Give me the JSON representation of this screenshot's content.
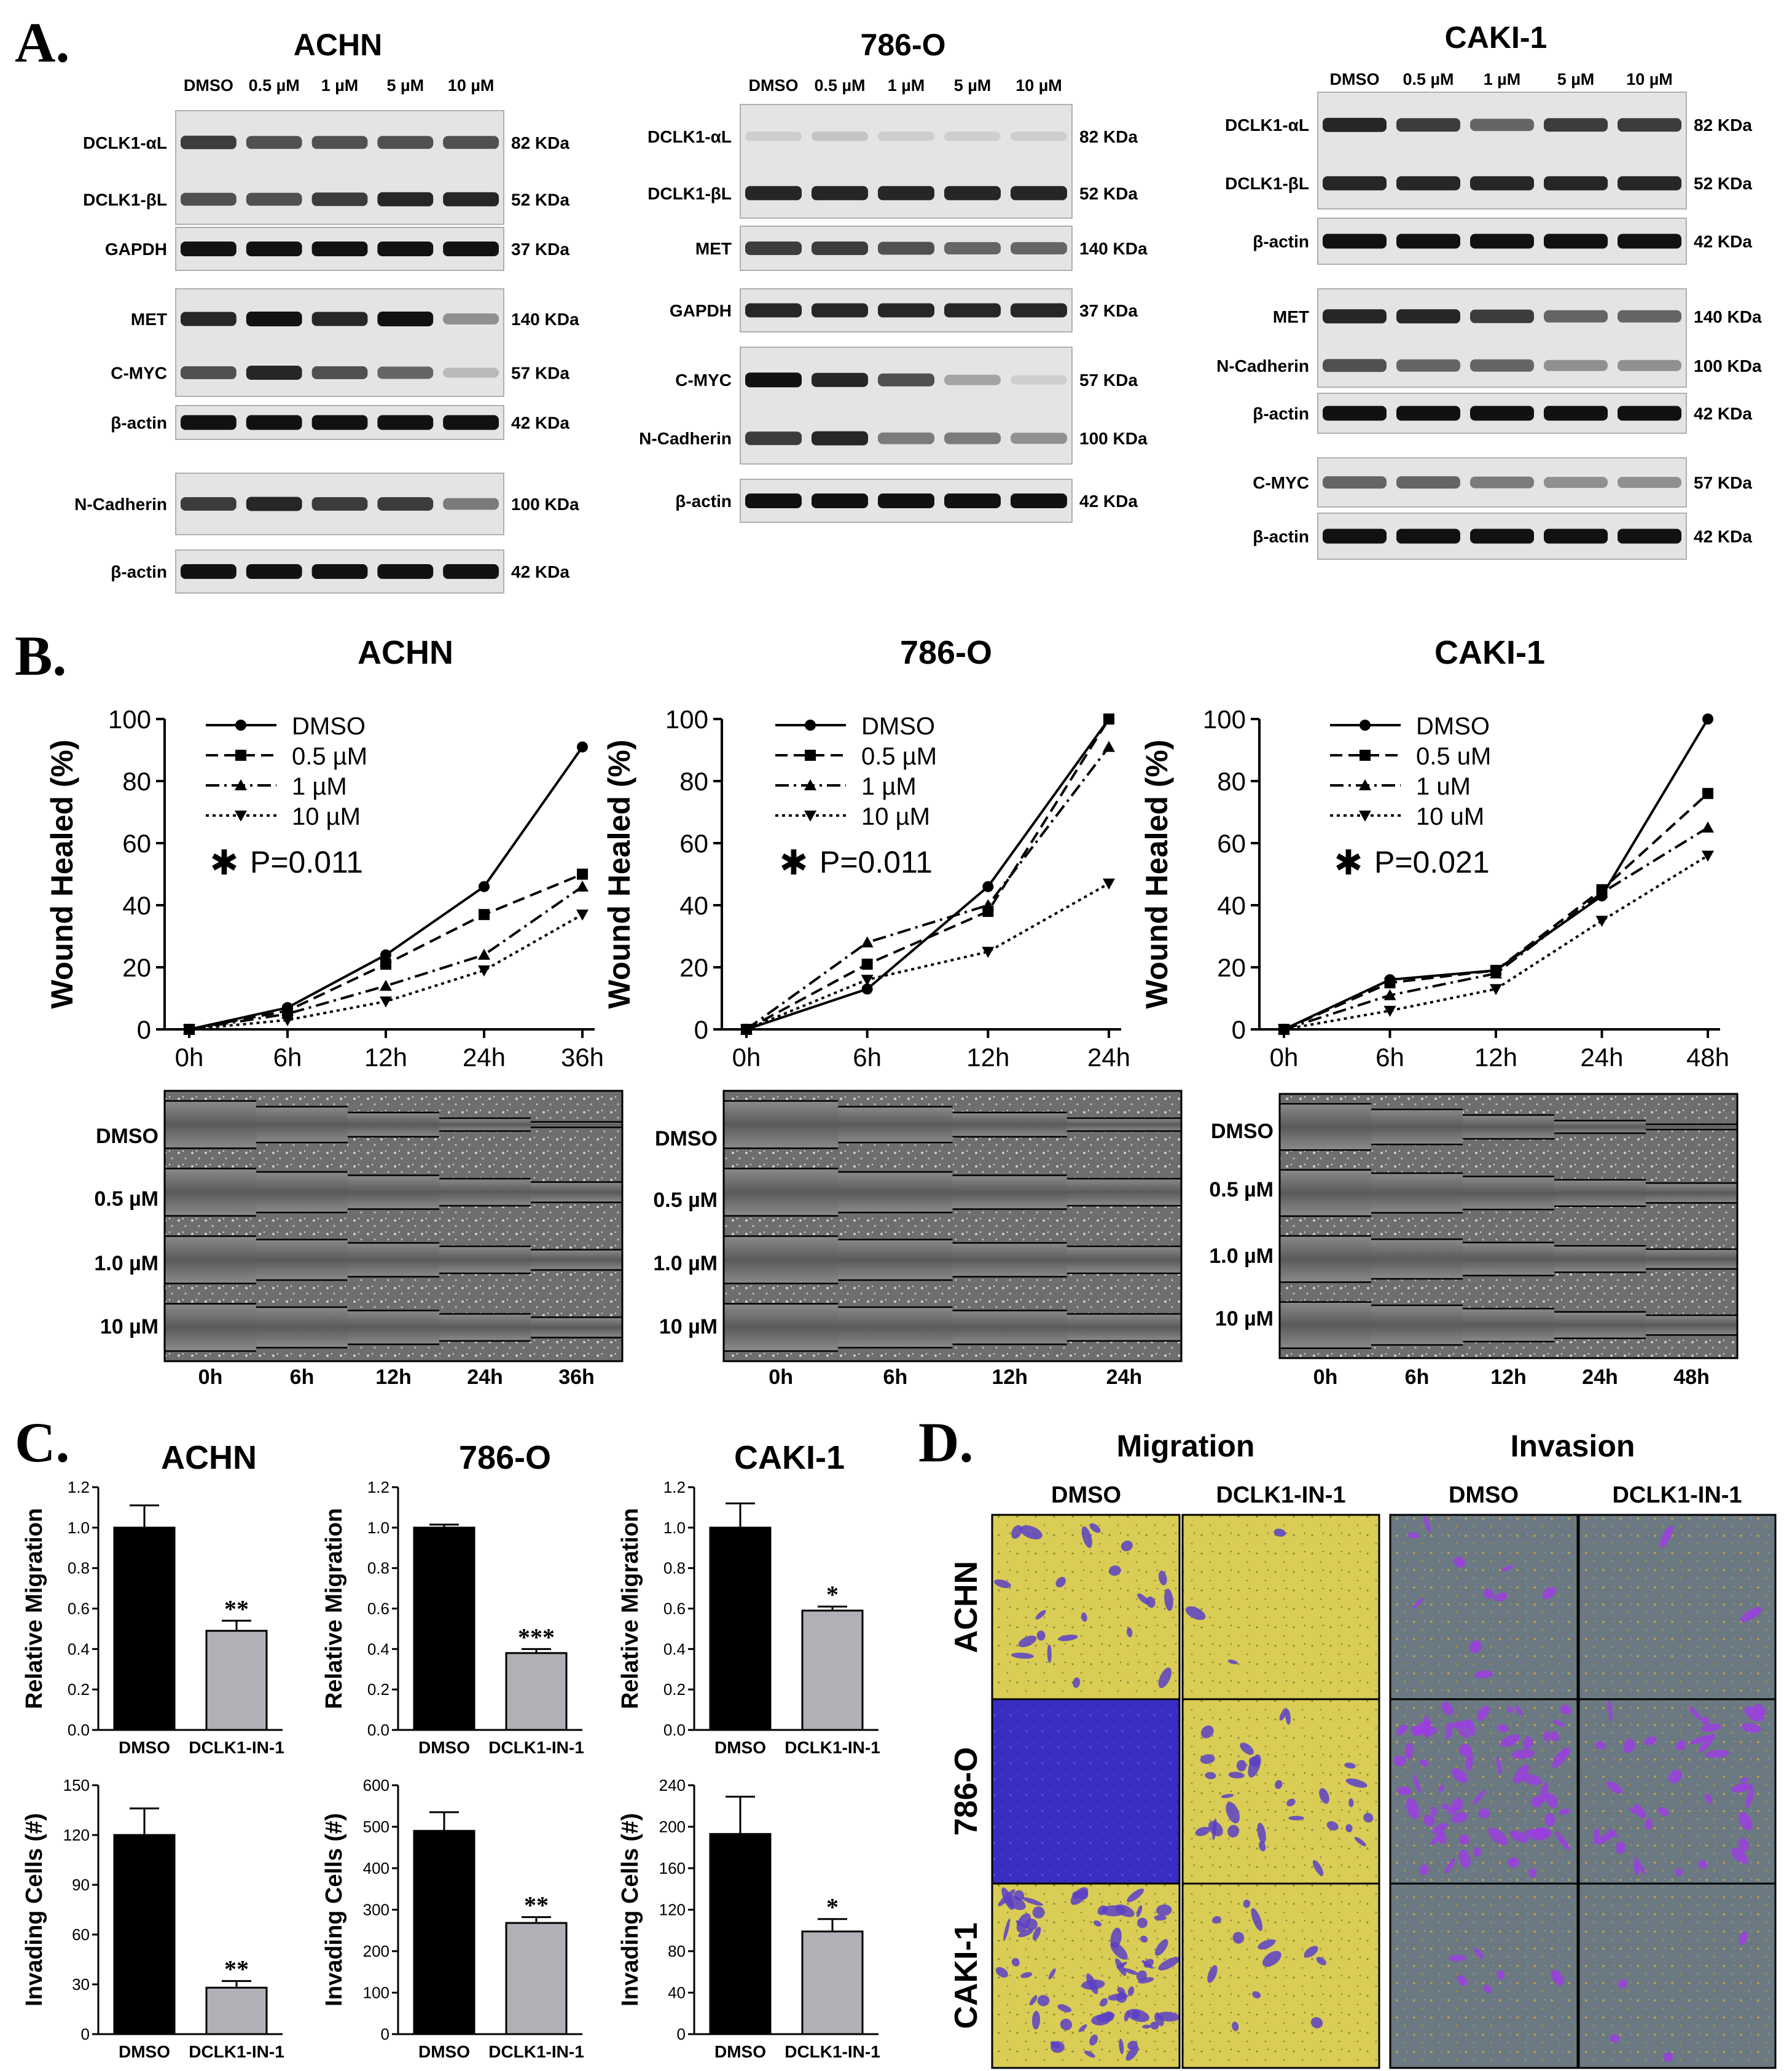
{
  "panel_labels": {
    "a": "A.",
    "b": "B.",
    "c": "C.",
    "d": "D."
  },
  "colors": {
    "band": "#111111",
    "blot_bg": "#e4e4e4",
    "bar_dmso": "#000000",
    "bar_treat": "#b0b0b7",
    "mig_yellow": "#d8cc52",
    "mig_blue": "#3b2fc4",
    "inv_gray": "#6c7a80",
    "purple": "#8a3bd6"
  },
  "blots": [
    {
      "title": "ACHN",
      "conc": [
        "DMSO",
        "0.5 µM",
        "1 µM",
        "5 µM",
        "10 µM"
      ],
      "strips": [
        {
          "left": [
            "DCLK1-αL",
            "DCLK1-βL"
          ],
          "right": [
            "82 KDa",
            "52 KDa"
          ],
          "intensity": [
            [
              0.8,
              0.7,
              0.7,
              0.7,
              0.7
            ],
            [
              0.7,
              0.7,
              0.8,
              0.9,
              0.9
            ]
          ]
        },
        {
          "left": [
            "GAPDH"
          ],
          "right": [
            "37 KDa"
          ],
          "intensity": [
            [
              1,
              1,
              1,
              1,
              1
            ]
          ]
        },
        {
          "left": [
            "MET",
            "C-MYC"
          ],
          "right": [
            "140 KDa",
            "57 KDa"
          ],
          "intensity": [
            [
              0.9,
              1,
              0.9,
              1,
              0.4
            ],
            [
              0.7,
              0.9,
              0.7,
              0.6,
              0.2
            ]
          ]
        },
        {
          "left": [
            "β-actin"
          ],
          "right": [
            "42 KDa"
          ],
          "intensity": [
            [
              1,
              1,
              1,
              1,
              1
            ]
          ]
        },
        {
          "left": [
            "N-Cadherin"
          ],
          "right": [
            "100 KDa"
          ],
          "intensity": [
            [
              0.8,
              0.9,
              0.8,
              0.8,
              0.5
            ]
          ]
        },
        {
          "left": [
            "β-actin"
          ],
          "right": [
            "42 KDa"
          ],
          "intensity": [
            [
              1,
              1,
              1,
              1,
              1
            ]
          ]
        }
      ]
    },
    {
      "title": "786-O",
      "conc": [
        "DMSO",
        "0.5 µM",
        "1 µM",
        "5 µM",
        "10 µM"
      ],
      "strips": [
        {
          "left": [
            "DCLK1-αL",
            "DCLK1-βL"
          ],
          "right": [
            "82 KDa",
            "52 KDa"
          ],
          "intensity": [
            [
              0.1,
              0.15,
              0.1,
              0.1,
              0.1
            ],
            [
              0.9,
              0.9,
              0.9,
              0.9,
              0.9
            ]
          ]
        },
        {
          "left": [
            "MET"
          ],
          "right": [
            "140 KDa"
          ],
          "intensity": [
            [
              0.8,
              0.8,
              0.7,
              0.6,
              0.6
            ]
          ]
        },
        {
          "left": [
            "GAPDH"
          ],
          "right": [
            "37 KDa"
          ],
          "intensity": [
            [
              0.9,
              0.9,
              0.9,
              0.9,
              0.9
            ]
          ]
        },
        {
          "left": [
            "C-MYC",
            "N-Cadherin"
          ],
          "right": [
            "57 KDa",
            "100 KDa"
          ],
          "intensity": [
            [
              1,
              0.9,
              0.7,
              0.3,
              0.1
            ],
            [
              0.8,
              0.9,
              0.5,
              0.5,
              0.4
            ]
          ]
        },
        {
          "left": [
            "β-actin"
          ],
          "right": [
            "42 KDa"
          ],
          "intensity": [
            [
              1,
              1,
              1,
              1,
              1
            ]
          ]
        }
      ]
    },
    {
      "title": "CAKI-1",
      "conc": [
        "DMSO",
        "0.5 µM",
        "1 µM",
        "5 µM",
        "10 µM"
      ],
      "strips": [
        {
          "left": [
            "DCLK1-αL",
            "DCLK1-βL"
          ],
          "right": [
            "82 KDa",
            "52 KDa"
          ],
          "intensity": [
            [
              0.9,
              0.8,
              0.6,
              0.8,
              0.8
            ],
            [
              0.9,
              0.9,
              0.9,
              0.9,
              0.9
            ]
          ]
        },
        {
          "left": [
            "β-actin"
          ],
          "right": [
            "42 KDa"
          ],
          "intensity": [
            [
              1,
              1,
              1,
              1,
              1
            ]
          ]
        },
        {
          "left": [
            "MET",
            "N-Cadherin"
          ],
          "right": [
            "140 KDa",
            "100 KDa"
          ],
          "intensity": [
            [
              0.9,
              0.9,
              0.8,
              0.6,
              0.6
            ],
            [
              0.7,
              0.6,
              0.6,
              0.4,
              0.4
            ]
          ]
        },
        {
          "left": [
            "β-actin"
          ],
          "right": [
            "42 KDa"
          ],
          "intensity": [
            [
              1,
              1,
              1,
              1,
              1
            ]
          ]
        },
        {
          "left": [
            "C-MYC"
          ],
          "right": [
            "57 KDa"
          ],
          "intensity": [
            [
              0.6,
              0.6,
              0.5,
              0.4,
              0.4
            ]
          ]
        },
        {
          "left": [
            "β-actin"
          ],
          "right": [
            "42 KDa"
          ],
          "intensity": [
            [
              1,
              1,
              1,
              1,
              1
            ]
          ]
        }
      ]
    }
  ],
  "chart_data": [
    {
      "type": "line",
      "title": "ACHN",
      "ylabel": "Wound Healed (%)",
      "xlabel": "",
      "categories": [
        "0h",
        "6h",
        "12h",
        "24h",
        "36h"
      ],
      "ylim": [
        0,
        100
      ],
      "yticks": [
        0,
        20,
        40,
        60,
        80,
        100
      ],
      "annotation": "P=0.011",
      "star": "✱",
      "series": [
        {
          "name": "DMSO",
          "values": [
            0,
            7,
            24,
            46,
            91
          ]
        },
        {
          "name": "0.5 µM",
          "values": [
            0,
            6,
            21,
            37,
            50
          ]
        },
        {
          "name": "1 µM",
          "values": [
            0,
            5,
            14,
            24,
            46
          ]
        },
        {
          "name": "10 µM",
          "values": [
            0,
            3,
            9,
            19,
            37
          ]
        }
      ]
    },
    {
      "type": "line",
      "title": "786-O",
      "ylabel": "Wound Healed (%)",
      "xlabel": "",
      "categories": [
        "0h",
        "6h",
        "12h",
        "24h"
      ],
      "ylim": [
        0,
        100
      ],
      "yticks": [
        0,
        20,
        40,
        60,
        80,
        100
      ],
      "annotation": "P=0.011",
      "star": "✱",
      "series": [
        {
          "name": "DMSO",
          "values": [
            0,
            13,
            46,
            100
          ]
        },
        {
          "name": "0.5 µM",
          "values": [
            0,
            21,
            38,
            100
          ]
        },
        {
          "name": "1 µM",
          "values": [
            0,
            28,
            40,
            91
          ]
        },
        {
          "name": "10 µM",
          "values": [
            0,
            16,
            25,
            47
          ]
        }
      ]
    },
    {
      "type": "line",
      "title": "CAKI-1",
      "ylabel": "Wound Healed (%)",
      "xlabel": "",
      "categories": [
        "0h",
        "6h",
        "12h",
        "24h",
        "48h"
      ],
      "ylim": [
        0,
        100
      ],
      "yticks": [
        0,
        20,
        40,
        60,
        80,
        100
      ],
      "annotation": "P=0.021",
      "star": "✱",
      "series": [
        {
          "name": "DMSO",
          "values": [
            0,
            16,
            19,
            43,
            100
          ]
        },
        {
          "name": "0.5 uM",
          "values": [
            0,
            15,
            19,
            45,
            76
          ]
        },
        {
          "name": "1 uM",
          "values": [
            0,
            11,
            18,
            44,
            65
          ]
        },
        {
          "name": "10 uM",
          "values": [
            0,
            6,
            13,
            35,
            56
          ]
        }
      ]
    },
    {
      "type": "bar",
      "title": "ACHN",
      "ylabel": "Relative Migration",
      "categories": [
        "DMSO",
        "DCLK1-IN-1"
      ],
      "values": [
        1.0,
        0.49
      ],
      "errors": [
        0.11,
        0.05
      ],
      "sig": [
        "",
        "**"
      ],
      "ylim": [
        0,
        1.2
      ],
      "yticks": [
        "0.0",
        "0.2",
        "0.4",
        "0.6",
        "0.8",
        "1.0",
        "1.2"
      ]
    },
    {
      "type": "bar",
      "title": "786-O",
      "ylabel": "Relative Migration",
      "categories": [
        "DMSO",
        "DCLK1-IN-1"
      ],
      "values": [
        1.0,
        0.38
      ],
      "errors": [
        0.015,
        0.02
      ],
      "sig": [
        "",
        "***"
      ],
      "ylim": [
        0,
        1.2
      ],
      "yticks": [
        "0.0",
        "0.2",
        "0.4",
        "0.6",
        "0.8",
        "1.0",
        "1.2"
      ]
    },
    {
      "type": "bar",
      "title": "CAKI-1",
      "ylabel": "Relative Migration",
      "categories": [
        "DMSO",
        "DCLK1-IN-1"
      ],
      "values": [
        1.0,
        0.59
      ],
      "errors": [
        0.12,
        0.02
      ],
      "sig": [
        "",
        "*"
      ],
      "ylim": [
        0,
        1.2
      ],
      "yticks": [
        "0.0",
        "0.2",
        "0.4",
        "0.6",
        "0.8",
        "1.0",
        "1.2"
      ]
    },
    {
      "type": "bar",
      "title": "",
      "ylabel": "Invading Cells (#)",
      "categories": [
        "DMSO",
        "DCLK1-IN-1"
      ],
      "values": [
        120,
        28
      ],
      "errors": [
        16,
        4
      ],
      "sig": [
        "",
        "**"
      ],
      "ylim": [
        0,
        150
      ],
      "yticks": [
        "0",
        "30",
        "60",
        "90",
        "120",
        "150"
      ]
    },
    {
      "type": "bar",
      "title": "",
      "ylabel": "Invading Cells (#)",
      "categories": [
        "DMSO",
        "DCLK1-IN-1"
      ],
      "values": [
        490,
        268
      ],
      "errors": [
        45,
        14
      ],
      "sig": [
        "",
        "**"
      ],
      "ylim": [
        0,
        600
      ],
      "yticks": [
        "0",
        "100",
        "200",
        "300",
        "400",
        "500",
        "600"
      ]
    },
    {
      "type": "bar",
      "title": "",
      "ylabel": "Invading Cells (#)",
      "categories": [
        "DMSO",
        "DCLK1-IN-1"
      ],
      "values": [
        193,
        99
      ],
      "errors": [
        36,
        12
      ],
      "sig": [
        "",
        "*"
      ],
      "ylim": [
        0,
        240
      ],
      "yticks": [
        "0",
        "40",
        "80",
        "120",
        "160",
        "200",
        "240"
      ]
    }
  ],
  "scratch": [
    {
      "rows": [
        "DMSO",
        "0.5 µM",
        "1.0 µM",
        "10 µM"
      ],
      "cols": [
        "0h",
        "6h",
        "12h",
        "24h",
        "36h"
      ]
    },
    {
      "rows": [
        "DMSO",
        "0.5 µM",
        "1.0 µM",
        "10 µM"
      ],
      "cols": [
        "0h",
        "6h",
        "12h",
        "24h"
      ]
    },
    {
      "rows": [
        "DMSO",
        "0.5 µM",
        "1.0 µM",
        "10 µM"
      ],
      "cols": [
        "0h",
        "6h",
        "12h",
        "24h",
        "48h"
      ]
    }
  ],
  "transwell": {
    "group_titles": [
      "Migration",
      "Invasion"
    ],
    "col_titles": [
      "DMSO",
      "DCLK1-IN-1",
      "DMSO",
      "DCLK1-IN-1"
    ],
    "row_titles": [
      "ACHN",
      "786-O",
      "CAKI-1"
    ]
  }
}
